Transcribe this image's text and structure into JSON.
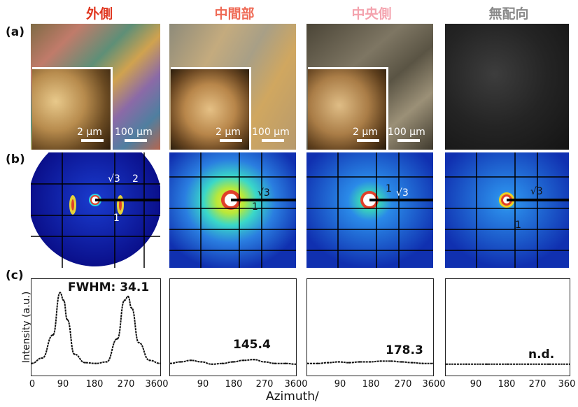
{
  "columns": [
    {
      "title": "外側",
      "color": "#e0361f"
    },
    {
      "title": "中間部",
      "color": "#ef6a55"
    },
    {
      "title": "中央側",
      "color": "#f4a3ae"
    },
    {
      "title": "無配向",
      "color": "#8a8a8a"
    }
  ],
  "row_labels": {
    "a": "(a)",
    "b": "(b)",
    "c": "(c)"
  },
  "scalebars": {
    "large": "100 μm",
    "small": "2 μm"
  },
  "saxs_labels": {
    "col1": {
      "sqrt3": "√3",
      "two": "2",
      "one": "1"
    },
    "col2": {
      "sqrt3": "√3",
      "one": "1"
    },
    "col3": {
      "one": "1",
      "sqrt3": "√3"
    },
    "col4": {
      "sqrt3": "√3",
      "one": "1"
    }
  },
  "panel_c": {
    "ylabel": "Intensity (a.u.)",
    "xlabel": "Azimuth/",
    "annotations": [
      "FWHM: 34.1",
      "145.4",
      "178.3",
      "n.d."
    ],
    "ticks": [
      "0",
      "90",
      "180",
      "270",
      "3600",
      "90",
      "180",
      "270",
      "3600",
      "90",
      "180",
      "270",
      "3600",
      "90",
      "180",
      "270",
      "360"
    ]
  },
  "chart_data": [
    {
      "type": "line",
      "xlim": [
        0,
        360
      ],
      "x": [
        0,
        30,
        60,
        80,
        90,
        100,
        120,
        150,
        180,
        210,
        240,
        260,
        270,
        280,
        300,
        330,
        360
      ],
      "values": [
        0.03,
        0.1,
        0.4,
        0.95,
        0.85,
        0.6,
        0.15,
        0.04,
        0.03,
        0.05,
        0.35,
        0.85,
        0.9,
        0.75,
        0.3,
        0.07,
        0.03
      ],
      "annotation": "FWHM: 34.1"
    },
    {
      "type": "line",
      "xlim": [
        0,
        360
      ],
      "x": [
        0,
        30,
        60,
        90,
        120,
        150,
        180,
        210,
        240,
        270,
        300,
        330,
        360
      ],
      "values": [
        0.03,
        0.05,
        0.07,
        0.05,
        0.02,
        0.03,
        0.05,
        0.07,
        0.08,
        0.05,
        0.03,
        0.03,
        0.02
      ],
      "annotation": "145.4"
    },
    {
      "type": "line",
      "xlim": [
        0,
        360
      ],
      "x": [
        0,
        30,
        60,
        90,
        120,
        150,
        180,
        210,
        240,
        270,
        300,
        330,
        360
      ],
      "values": [
        0.03,
        0.03,
        0.04,
        0.05,
        0.04,
        0.05,
        0.05,
        0.06,
        0.06,
        0.05,
        0.04,
        0.03,
        0.03
      ],
      "annotation": "178.3"
    },
    {
      "type": "line",
      "xlim": [
        0,
        360
      ],
      "x": [
        0,
        60,
        120,
        180,
        240,
        300,
        360
      ],
      "values": [
        0.02,
        0.02,
        0.02,
        0.02,
        0.02,
        0.02,
        0.02
      ],
      "annotation": "n.d."
    }
  ]
}
